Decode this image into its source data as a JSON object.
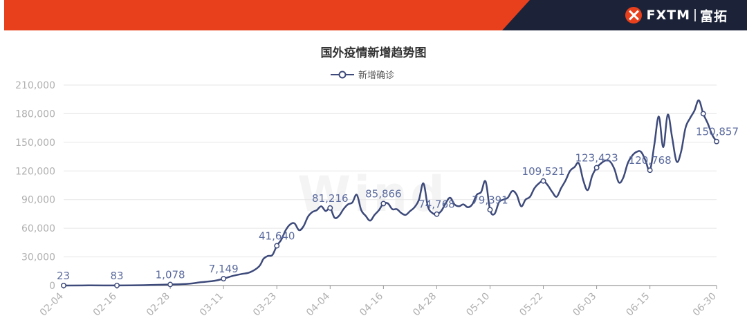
{
  "brand": {
    "name": "FXTM",
    "name_cn": "富拓"
  },
  "colors": {
    "banner_red": "#e8401c",
    "banner_dark": "#1c2338",
    "series": "#3d4a7a",
    "grid": "#e6e6e6",
    "axis_label": "#b0b0b0",
    "data_label": "#5b6b9e"
  },
  "chart_data": {
    "type": "line",
    "title": "国外疫情新增趋势图",
    "series_name": "新增确诊",
    "legend_position": "top-center",
    "grid": true,
    "ylim": [
      0,
      210000
    ],
    "y_ticks": [
      0,
      30000,
      60000,
      90000,
      120000,
      150000,
      180000,
      210000
    ],
    "y_tick_labels": [
      "0",
      "30,000",
      "60,000",
      "90,000",
      "120,000",
      "150,000",
      "180,000",
      "210,000"
    ],
    "x_tick_labels": [
      "02-04",
      "02-16",
      "02-28",
      "03-11",
      "03-23",
      "04-04",
      "04-16",
      "04-28",
      "05-10",
      "05-22",
      "06-03",
      "06-15",
      "06-30"
    ],
    "x_tick_day_index": [
      0,
      12,
      24,
      36,
      48,
      60,
      72,
      84,
      96,
      108,
      120,
      132,
      147
    ],
    "points": [
      [
        0,
        23
      ],
      [
        6,
        150
      ],
      [
        12,
        83
      ],
      [
        18,
        400
      ],
      [
        24,
        1078
      ],
      [
        28,
        1800
      ],
      [
        31,
        3500
      ],
      [
        34,
        5000
      ],
      [
        36,
        7149
      ],
      [
        38,
        10000
      ],
      [
        40,
        12000
      ],
      [
        42,
        14000
      ],
      [
        44,
        20000
      ],
      [
        45,
        28000
      ],
      [
        46,
        31000
      ],
      [
        47,
        32000
      ],
      [
        48,
        41640
      ],
      [
        49,
        48000
      ],
      [
        50,
        58000
      ],
      [
        51,
        64000
      ],
      [
        52,
        65000
      ],
      [
        53,
        58000
      ],
      [
        54,
        62000
      ],
      [
        55,
        72000
      ],
      [
        56,
        77000
      ],
      [
        57,
        79000
      ],
      [
        58,
        83000
      ],
      [
        59,
        78000
      ],
      [
        60,
        81216
      ],
      [
        61,
        71000
      ],
      [
        62,
        73000
      ],
      [
        63,
        80000
      ],
      [
        64,
        85000
      ],
      [
        65,
        87000
      ],
      [
        66,
        95000
      ],
      [
        67,
        79000
      ],
      [
        68,
        73000
      ],
      [
        69,
        68000
      ],
      [
        70,
        74000
      ],
      [
        71,
        79000
      ],
      [
        72,
        85866
      ],
      [
        73,
        86000
      ],
      [
        74,
        80000
      ],
      [
        75,
        80000
      ],
      [
        76,
        76000
      ],
      [
        77,
        74000
      ],
      [
        78,
        78000
      ],
      [
        79,
        82000
      ],
      [
        80,
        90000
      ],
      [
        81,
        107000
      ],
      [
        82,
        83000
      ],
      [
        83,
        76000
      ],
      [
        84,
        74768
      ],
      [
        85,
        78000
      ],
      [
        86,
        86000
      ],
      [
        87,
        92000
      ],
      [
        88,
        85000
      ],
      [
        89,
        83000
      ],
      [
        90,
        85000
      ],
      [
        91,
        82000
      ],
      [
        92,
        85000
      ],
      [
        93,
        95000
      ],
      [
        94,
        98000
      ],
      [
        95,
        109000
      ],
      [
        96,
        79391
      ],
      [
        97,
        75000
      ],
      [
        98,
        87000
      ],
      [
        99,
        90000
      ],
      [
        100,
        92000
      ],
      [
        101,
        99000
      ],
      [
        102,
        95000
      ],
      [
        103,
        83000
      ],
      [
        104,
        90000
      ],
      [
        105,
        93000
      ],
      [
        106,
        102000
      ],
      [
        107,
        107000
      ],
      [
        108,
        109521
      ],
      [
        109,
        105000
      ],
      [
        110,
        98000
      ],
      [
        111,
        93000
      ],
      [
        112,
        102000
      ],
      [
        113,
        110000
      ],
      [
        114,
        120000
      ],
      [
        115,
        124000
      ],
      [
        116,
        128000
      ],
      [
        117,
        110000
      ],
      [
        118,
        100000
      ],
      [
        119,
        115000
      ],
      [
        120,
        123423
      ],
      [
        121,
        128000
      ],
      [
        122,
        131000
      ],
      [
        123,
        130000
      ],
      [
        124,
        122000
      ],
      [
        125,
        108000
      ],
      [
        126,
        113000
      ],
      [
        127,
        128000
      ],
      [
        128,
        136000
      ],
      [
        129,
        140000
      ],
      [
        130,
        140000
      ],
      [
        131,
        131000
      ],
      [
        132,
        120768
      ],
      [
        133,
        148000
      ],
      [
        134,
        177000
      ],
      [
        135,
        145000
      ],
      [
        136,
        179000
      ],
      [
        137,
        155000
      ],
      [
        138,
        130000
      ],
      [
        139,
        140000
      ],
      [
        140,
        165000
      ],
      [
        141,
        175000
      ],
      [
        142,
        183000
      ],
      [
        143,
        194000
      ],
      [
        144,
        180000
      ],
      [
        145,
        170000
      ],
      [
        146,
        158000
      ],
      [
        147,
        150857
      ]
    ],
    "labeled_points": [
      {
        "day": 0,
        "value": 23,
        "label": "23"
      },
      {
        "day": 12,
        "value": 83,
        "label": "83"
      },
      {
        "day": 24,
        "value": 1078,
        "label": "1,078"
      },
      {
        "day": 36,
        "value": 7149,
        "label": "7,149"
      },
      {
        "day": 48,
        "value": 41640,
        "label": "41,640"
      },
      {
        "day": 60,
        "value": 81216,
        "label": "81,216"
      },
      {
        "day": 72,
        "value": 85866,
        "label": "85,866"
      },
      {
        "day": 84,
        "value": 74768,
        "label": "74,768"
      },
      {
        "day": 96,
        "value": 79391,
        "label": "79,391"
      },
      {
        "day": 108,
        "value": 109521,
        "label": "109,521"
      },
      {
        "day": 120,
        "value": 123423,
        "label": "123,423"
      },
      {
        "day": 132,
        "value": 120768,
        "label": "120,768"
      },
      {
        "day": 147,
        "value": 150857,
        "label": "150,857"
      }
    ],
    "extra_markers": [
      {
        "day": 144,
        "value": 180000
      }
    ]
  }
}
